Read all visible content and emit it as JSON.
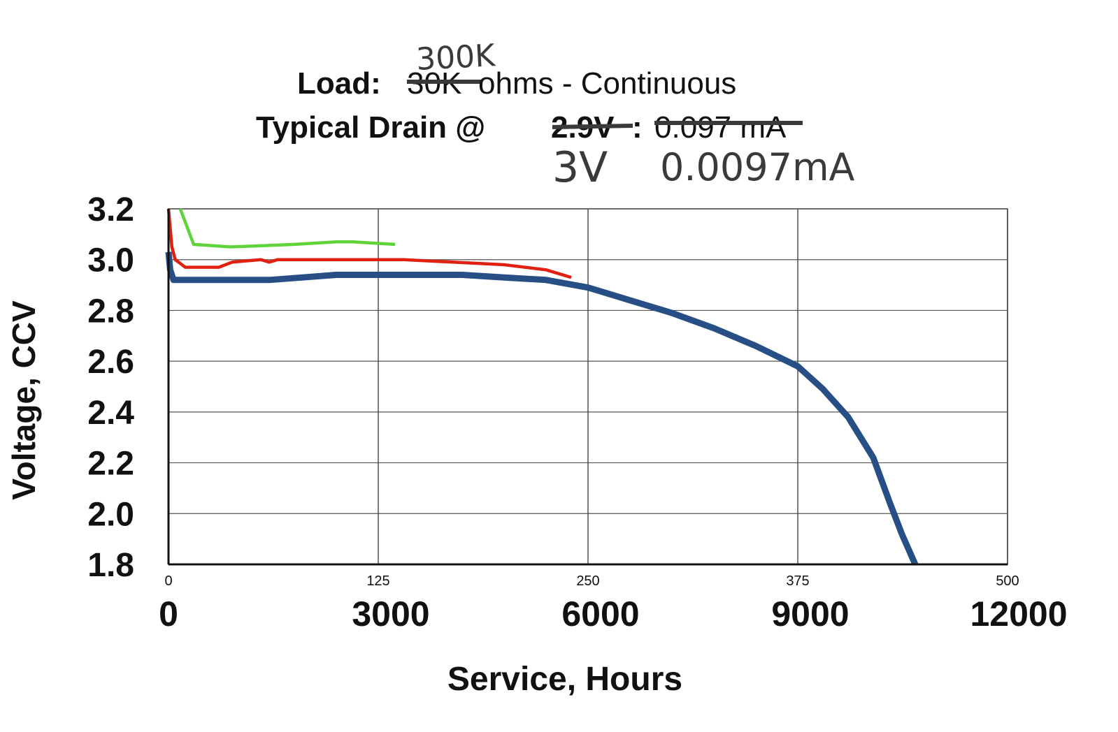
{
  "chart_data": {
    "type": "line",
    "title": {
      "line1_bold": "Load:",
      "line1_struck": "30K",
      "line1_rest": "ohms - Continuous",
      "line1_handwritten": "300K",
      "line2_bold": "Typical Drain @",
      "line2_struck_voltage": "2.9V",
      "line2_colon": ":",
      "line2_struck_current": "0.097 mA",
      "line2_handwritten_voltage": "3V",
      "line2_handwritten_current": "0.0097mA"
    },
    "ylabel": "Voltage, CCV",
    "xlabel": "Service, Hours",
    "ylim": [
      1.8,
      3.2
    ],
    "xlim": [
      0,
      500
    ],
    "yticks": [
      "3.2",
      "3.0",
      "2.8",
      "2.6",
      "2.4",
      "2.2",
      "2.0",
      "1.8"
    ],
    "xticks": [
      "0",
      "125",
      "250",
      "375",
      "500"
    ],
    "xticks_handwritten": [
      "0",
      "3000",
      "6000",
      "9000",
      "12000"
    ],
    "grid": true,
    "series": [
      {
        "color": "#274f86",
        "x": [
          0,
          1,
          3,
          6,
          20,
          40,
          60,
          80,
          100,
          125,
          150,
          175,
          200,
          225,
          250,
          275,
          300,
          325,
          350,
          375,
          390,
          405,
          420,
          430,
          437,
          445
        ],
        "y": [
          3.03,
          2.96,
          2.92,
          2.92,
          2.92,
          2.92,
          2.92,
          2.93,
          2.94,
          2.94,
          2.94,
          2.94,
          2.93,
          2.92,
          2.89,
          2.84,
          2.79,
          2.73,
          2.66,
          2.58,
          2.49,
          2.38,
          2.22,
          2.04,
          1.92,
          1.8
        ]
      },
      {
        "color": "#e02010",
        "x": [
          0,
          2,
          4,
          10,
          30,
          38,
          55,
          60,
          65,
          75,
          100,
          140,
          200,
          225,
          240
        ],
        "y": [
          3.2,
          3.05,
          3.0,
          2.97,
          2.97,
          2.99,
          3.0,
          2.99,
          3.0,
          3.0,
          3.0,
          3.0,
          2.98,
          2.96,
          2.93
        ]
      },
      {
        "color": "#5fd43a",
        "x": [
          7,
          15,
          37,
          75,
          100,
          110,
          135
        ],
        "y": [
          3.2,
          3.06,
          3.05,
          3.06,
          3.07,
          3.07,
          3.06
        ]
      }
    ]
  }
}
